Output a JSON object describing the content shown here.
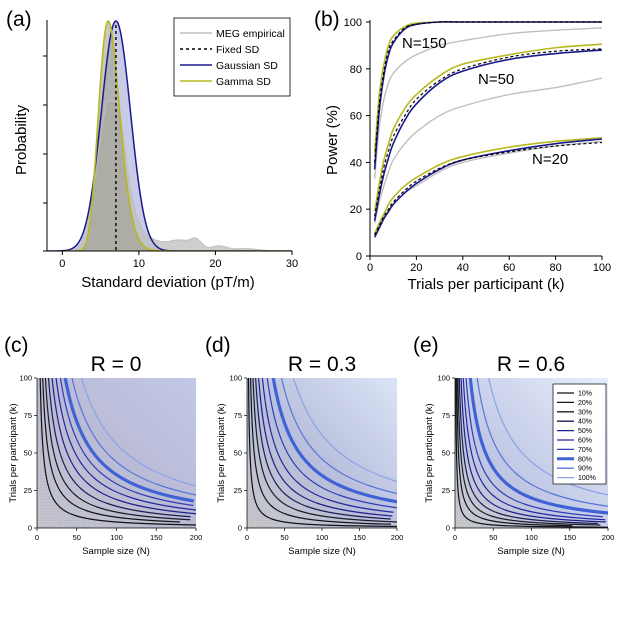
{
  "colors": {
    "meg": "#bfbfbf",
    "fixed": "#000000",
    "gaussian": "#1a1a8c",
    "gamma": "#b8b820",
    "contour_dark": "#1a1a1a",
    "contour_80": "#3f62d6"
  },
  "chart_data": [
    {
      "panel": "(a)",
      "type": "line",
      "xlabel": "Standard deviation (pT/m)",
      "ylabel": "Probability",
      "xlim": [
        -2,
        30
      ],
      "xticks": [
        0,
        10,
        20,
        30
      ],
      "grid": false,
      "legend_placement": "top-right",
      "series": [
        {
          "name": "MEG empirical",
          "peak": 6.5,
          "tail": true
        },
        {
          "name": "Fixed SD",
          "x": 7
        },
        {
          "name": "Gaussian SD",
          "mean": 7,
          "sd": 1.9
        },
        {
          "name": "Gamma SD",
          "mode": 6,
          "shape": 20
        }
      ]
    },
    {
      "panel": "(b)",
      "type": "line",
      "xlabel": "Trials per participant (k)",
      "ylabel": "Power (%)",
      "xlim": [
        0,
        100
      ],
      "ylim": [
        0,
        100
      ],
      "xticks": [
        0,
        20,
        40,
        60,
        80,
        100
      ],
      "yticks": [
        0,
        20,
        40,
        60,
        80,
        100
      ],
      "grid": false,
      "x": [
        2,
        4,
        6,
        8,
        10,
        15,
        20,
        30,
        40,
        60,
        80,
        100
      ],
      "groups": [
        {
          "label": "N=150",
          "series": [
            {
              "name": "Gaussian SD",
              "values": [
                37,
                62,
                77,
                86,
                91,
                97,
                99,
                100,
                100,
                100,
                100,
                100
              ]
            },
            {
              "name": "Gamma SD",
              "values": [
                44,
                69,
                82,
                90,
                94,
                98,
                99.5,
                100,
                100,
                100,
                100,
                100
              ]
            },
            {
              "name": "Fixed SD",
              "values": [
                40,
                65,
                79,
                88,
                92,
                97.5,
                99,
                100,
                100,
                100,
                100,
                100
              ]
            },
            {
              "name": "MEG empirical",
              "values": [
                33,
                55,
                67,
                74,
                78,
                83,
                86,
                90,
                92,
                95,
                96.5,
                97.5
              ]
            }
          ]
        },
        {
          "label": "N=50",
          "series": [
            {
              "name": "Gaussian SD",
              "values": [
                15,
                26,
                35,
                42,
                48,
                58,
                65,
                74,
                79,
                84,
                86.5,
                88
              ]
            },
            {
              "name": "Gamma SD",
              "values": [
                19,
                31,
                41,
                48,
                54,
                63,
                69,
                77,
                82,
                86,
                89,
                90.5
              ]
            },
            {
              "name": "Fixed SD",
              "values": [
                17,
                28,
                38,
                45,
                51,
                60,
                67,
                75,
                80,
                85,
                87.5,
                88.5
              ]
            },
            {
              "name": "MEG empirical",
              "values": [
                14,
                23,
                30,
                36,
                41,
                48,
                53,
                60,
                64,
                69,
                72,
                76
              ]
            }
          ]
        },
        {
          "label": "N=20",
          "series": [
            {
              "name": "Gaussian SD",
              "values": [
                8,
                12,
                16,
                19,
                22,
                27,
                31,
                37,
                41,
                45,
                48,
                50
              ]
            },
            {
              "name": "Gamma SD",
              "values": [
                9.5,
                14,
                18,
                22,
                25,
                30,
                33.5,
                39,
                42.5,
                46.5,
                49,
                50.5
              ]
            },
            {
              "name": "Fixed SD",
              "values": [
                9,
                13,
                17,
                20,
                23,
                28,
                32,
                37.5,
                41,
                44.5,
                47,
                48.5
              ]
            },
            {
              "name": "MEG empirical",
              "values": [
                9,
                13,
                16.5,
                19.5,
                22,
                27,
                30,
                36,
                40,
                44,
                47,
                49
              ]
            }
          ]
        }
      ]
    },
    {
      "panel": "(c)",
      "type": "heatmap",
      "title": "R = 0",
      "xlabel": "Sample size (N)",
      "ylabel": "Trials per participant (k)",
      "xlim": [
        0,
        200
      ],
      "ylim": [
        0,
        100
      ],
      "xticks": [
        0,
        50,
        100,
        150,
        200
      ],
      "yticks": [
        0,
        25,
        50,
        75,
        100
      ],
      "contour_levels": [
        10,
        20,
        30,
        40,
        50,
        60,
        70,
        80,
        90,
        100
      ],
      "contour_constant_NK": [
        400,
        720,
        1060,
        1450,
        1900,
        2400,
        2950,
        3550,
        4400,
        5600
      ]
    },
    {
      "panel": "(d)",
      "type": "heatmap",
      "title": "R = 0.3",
      "xlabel": "Sample size (N)",
      "ylabel": "Trials per participant (k)",
      "xlim": [
        0,
        200
      ],
      "ylim": [
        0,
        100
      ],
      "xticks": [
        0,
        50,
        100,
        150,
        200
      ],
      "yticks": [
        0,
        25,
        50,
        75,
        100
      ],
      "contour_levels": [
        10,
        20,
        30,
        40,
        50,
        60,
        70,
        80,
        90,
        100
      ],
      "contour_constant_NK": [
        200,
        480,
        800,
        1150,
        1550,
        2050,
        2700,
        3500,
        4600,
        6200
      ]
    },
    {
      "panel": "(e)",
      "type": "heatmap",
      "title": "R = 0.6",
      "xlabel": "Sample size (N)",
      "ylabel": "Trials per participant (k)",
      "xlim": [
        0,
        200
      ],
      "ylim": [
        0,
        100
      ],
      "xticks": [
        0,
        50,
        100,
        150,
        200
      ],
      "yticks": [
        0,
        25,
        50,
        75,
        100
      ],
      "contour_levels": [
        10,
        20,
        30,
        40,
        50,
        60,
        70,
        80,
        90,
        100
      ],
      "contour_constant_NK": [
        100,
        230,
        380,
        560,
        790,
        1080,
        1450,
        2000,
        2900,
        4400
      ],
      "legend": [
        "10%",
        "20%",
        "30%",
        "40%",
        "50%",
        "60%",
        "70%",
        "80%",
        "90%",
        "100%"
      ],
      "legend_placement": "top-right"
    }
  ]
}
